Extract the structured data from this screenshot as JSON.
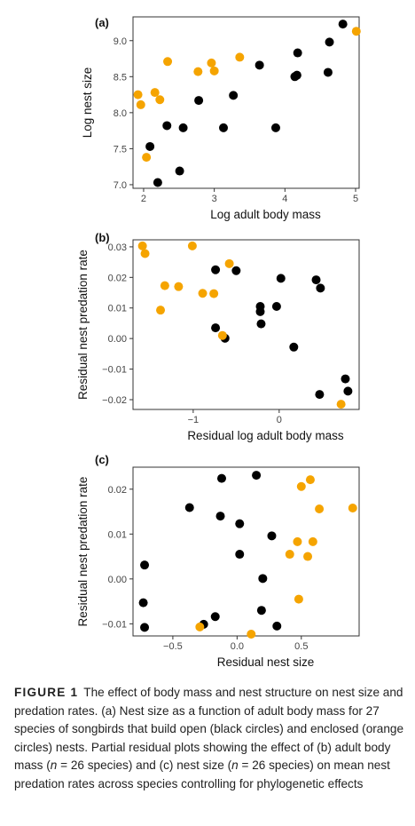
{
  "colors": {
    "open": "#000000",
    "enclosed": "#f5a400",
    "axis": "#333333",
    "tick_text": "#444444"
  },
  "caption": {
    "figure_label": "FIGURE 1",
    "p1": "The effect of body mass and nest structure on nest size and predation rates. (a) Nest size as a function of adult body mass for 27 species of songbirds that build open (black circles) and enclosed (orange circles) nests. Partial residual plots showing the effect of (b) adult body mass (",
    "n": "n",
    "p2": " = 26 species) and (c) nest size (",
    "p3": " = 26 species) on mean nest predation rates across species controlling for phylogenetic effects"
  },
  "chart_data": [
    {
      "panel": "(a)",
      "type": "scatter",
      "xlabel": "Log adult body mass",
      "ylabel": "Log nest size",
      "xlim": [
        1.85,
        5.05
      ],
      "ylim": [
        6.95,
        9.33
      ],
      "xticks": [
        2,
        3,
        4,
        5
      ],
      "xtick_labels": [
        "2",
        "3",
        "4",
        "5"
      ],
      "yticks": [
        7.0,
        7.5,
        8.0,
        8.5,
        9.0
      ],
      "ytick_labels": [
        "7.0",
        "7.5",
        "8.0",
        "8.5",
        "9.0"
      ],
      "series": [
        {
          "group": "open",
          "color": "#000000",
          "points": [
            [
              2.09,
              7.53
            ],
            [
              2.2,
              7.03
            ],
            [
              2.33,
              7.82
            ],
            [
              2.51,
              7.19
            ],
            [
              2.56,
              7.79
            ],
            [
              2.78,
              8.17
            ],
            [
              3.13,
              7.79
            ],
            [
              3.27,
              8.24
            ],
            [
              3.64,
              8.66
            ],
            [
              3.87,
              7.79
            ],
            [
              4.14,
              8.5
            ],
            [
              4.17,
              8.52
            ],
            [
              4.18,
              8.83
            ],
            [
              4.61,
              8.56
            ],
            [
              4.63,
              8.98
            ],
            [
              4.82,
              9.23
            ]
          ]
        },
        {
          "group": "enclosed",
          "color": "#f5a400",
          "points": [
            [
              1.92,
              8.25
            ],
            [
              1.96,
              8.11
            ],
            [
              2.04,
              7.38
            ],
            [
              2.16,
              8.28
            ],
            [
              2.23,
              8.18
            ],
            [
              2.34,
              8.71
            ],
            [
              2.77,
              8.57
            ],
            [
              2.96,
              8.69
            ],
            [
              3.0,
              8.58
            ],
            [
              3.36,
              8.77
            ],
            [
              5.01,
              9.13
            ]
          ]
        }
      ]
    },
    {
      "panel": "(b)",
      "type": "scatter",
      "xlabel": "Residual log adult body mass",
      "ylabel": "Residual nest predation rate",
      "xlim": [
        -1.7,
        0.93
      ],
      "ylim": [
        -0.0232,
        0.0323
      ],
      "xticks": [
        -1,
        0
      ],
      "xtick_labels": [
        "−1",
        "0"
      ],
      "yticks": [
        -0.02,
        -0.01,
        0.0,
        0.01,
        0.02,
        0.03
      ],
      "ytick_labels": [
        "−0.02",
        "−0.01",
        "0.00",
        "0.01",
        "0.02",
        "0.03"
      ],
      "series": [
        {
          "group": "open",
          "color": "#000000",
          "points": [
            [
              -0.74,
              0.0225
            ],
            [
              -0.74,
              0.0035
            ],
            [
              -0.63,
              0.0001
            ],
            [
              -0.5,
              0.0222
            ],
            [
              -0.22,
              0.0105
            ],
            [
              -0.22,
              0.0088
            ],
            [
              -0.21,
              0.0048
            ],
            [
              -0.03,
              0.0105
            ],
            [
              0.02,
              0.0197
            ],
            [
              0.17,
              -0.0028
            ],
            [
              0.43,
              0.0192
            ],
            [
              0.48,
              0.0165
            ],
            [
              0.47,
              -0.0183
            ],
            [
              0.77,
              -0.0132
            ],
            [
              0.8,
              -0.0172
            ]
          ]
        },
        {
          "group": "enclosed",
          "color": "#f5a400",
          "points": [
            [
              -1.59,
              0.0303
            ],
            [
              -1.56,
              0.0278
            ],
            [
              -1.38,
              0.0093
            ],
            [
              -1.33,
              0.0173
            ],
            [
              -1.17,
              0.017
            ],
            [
              -1.01,
              0.0303
            ],
            [
              -0.89,
              0.0148
            ],
            [
              -0.76,
              0.0147
            ],
            [
              -0.66,
              0.001
            ],
            [
              -0.58,
              0.0245
            ],
            [
              0.72,
              -0.0215
            ]
          ]
        }
      ]
    },
    {
      "panel": "(c)",
      "type": "scatter",
      "xlabel": "Residual nest size",
      "ylabel": "Residual nest predation rate",
      "xlim": [
        -0.81,
        0.95
      ],
      "ylim": [
        -0.0127,
        0.0249
      ],
      "xticks": [
        -0.5,
        0.0,
        0.5
      ],
      "xtick_labels": [
        "−0.5",
        "0.0",
        "0.5"
      ],
      "yticks": [
        -0.01,
        0.0,
        0.01,
        0.02
      ],
      "ytick_labels": [
        "−0.01",
        "0.00",
        "0.01",
        "0.02"
      ],
      "series": [
        {
          "group": "open",
          "color": "#000000",
          "points": [
            [
              -0.72,
              0.0031
            ],
            [
              -0.73,
              -0.0053
            ],
            [
              -0.72,
              -0.0108
            ],
            [
              -0.37,
              0.0159
            ],
            [
              -0.26,
              -0.0101
            ],
            [
              -0.17,
              -0.0084
            ],
            [
              -0.12,
              0.0224
            ],
            [
              -0.13,
              0.014
            ],
            [
              0.02,
              0.0123
            ],
            [
              0.02,
              0.0055
            ],
            [
              0.15,
              0.0231
            ],
            [
              0.19,
              -0.007
            ],
            [
              0.2,
              0.0001
            ],
            [
              0.27,
              0.0096
            ],
            [
              0.31,
              -0.0105
            ]
          ]
        },
        {
          "group": "enclosed",
          "color": "#f5a400",
          "points": [
            [
              -0.29,
              -0.0107
            ],
            [
              0.11,
              -0.0123
            ],
            [
              0.41,
              0.0055
            ],
            [
              0.47,
              0.0083
            ],
            [
              0.48,
              -0.0045
            ],
            [
              0.5,
              0.0206
            ],
            [
              0.55,
              0.005
            ],
            [
              0.57,
              0.0221
            ],
            [
              0.59,
              0.0083
            ],
            [
              0.64,
              0.0156
            ],
            [
              0.9,
              0.0158
            ]
          ]
        }
      ]
    }
  ]
}
